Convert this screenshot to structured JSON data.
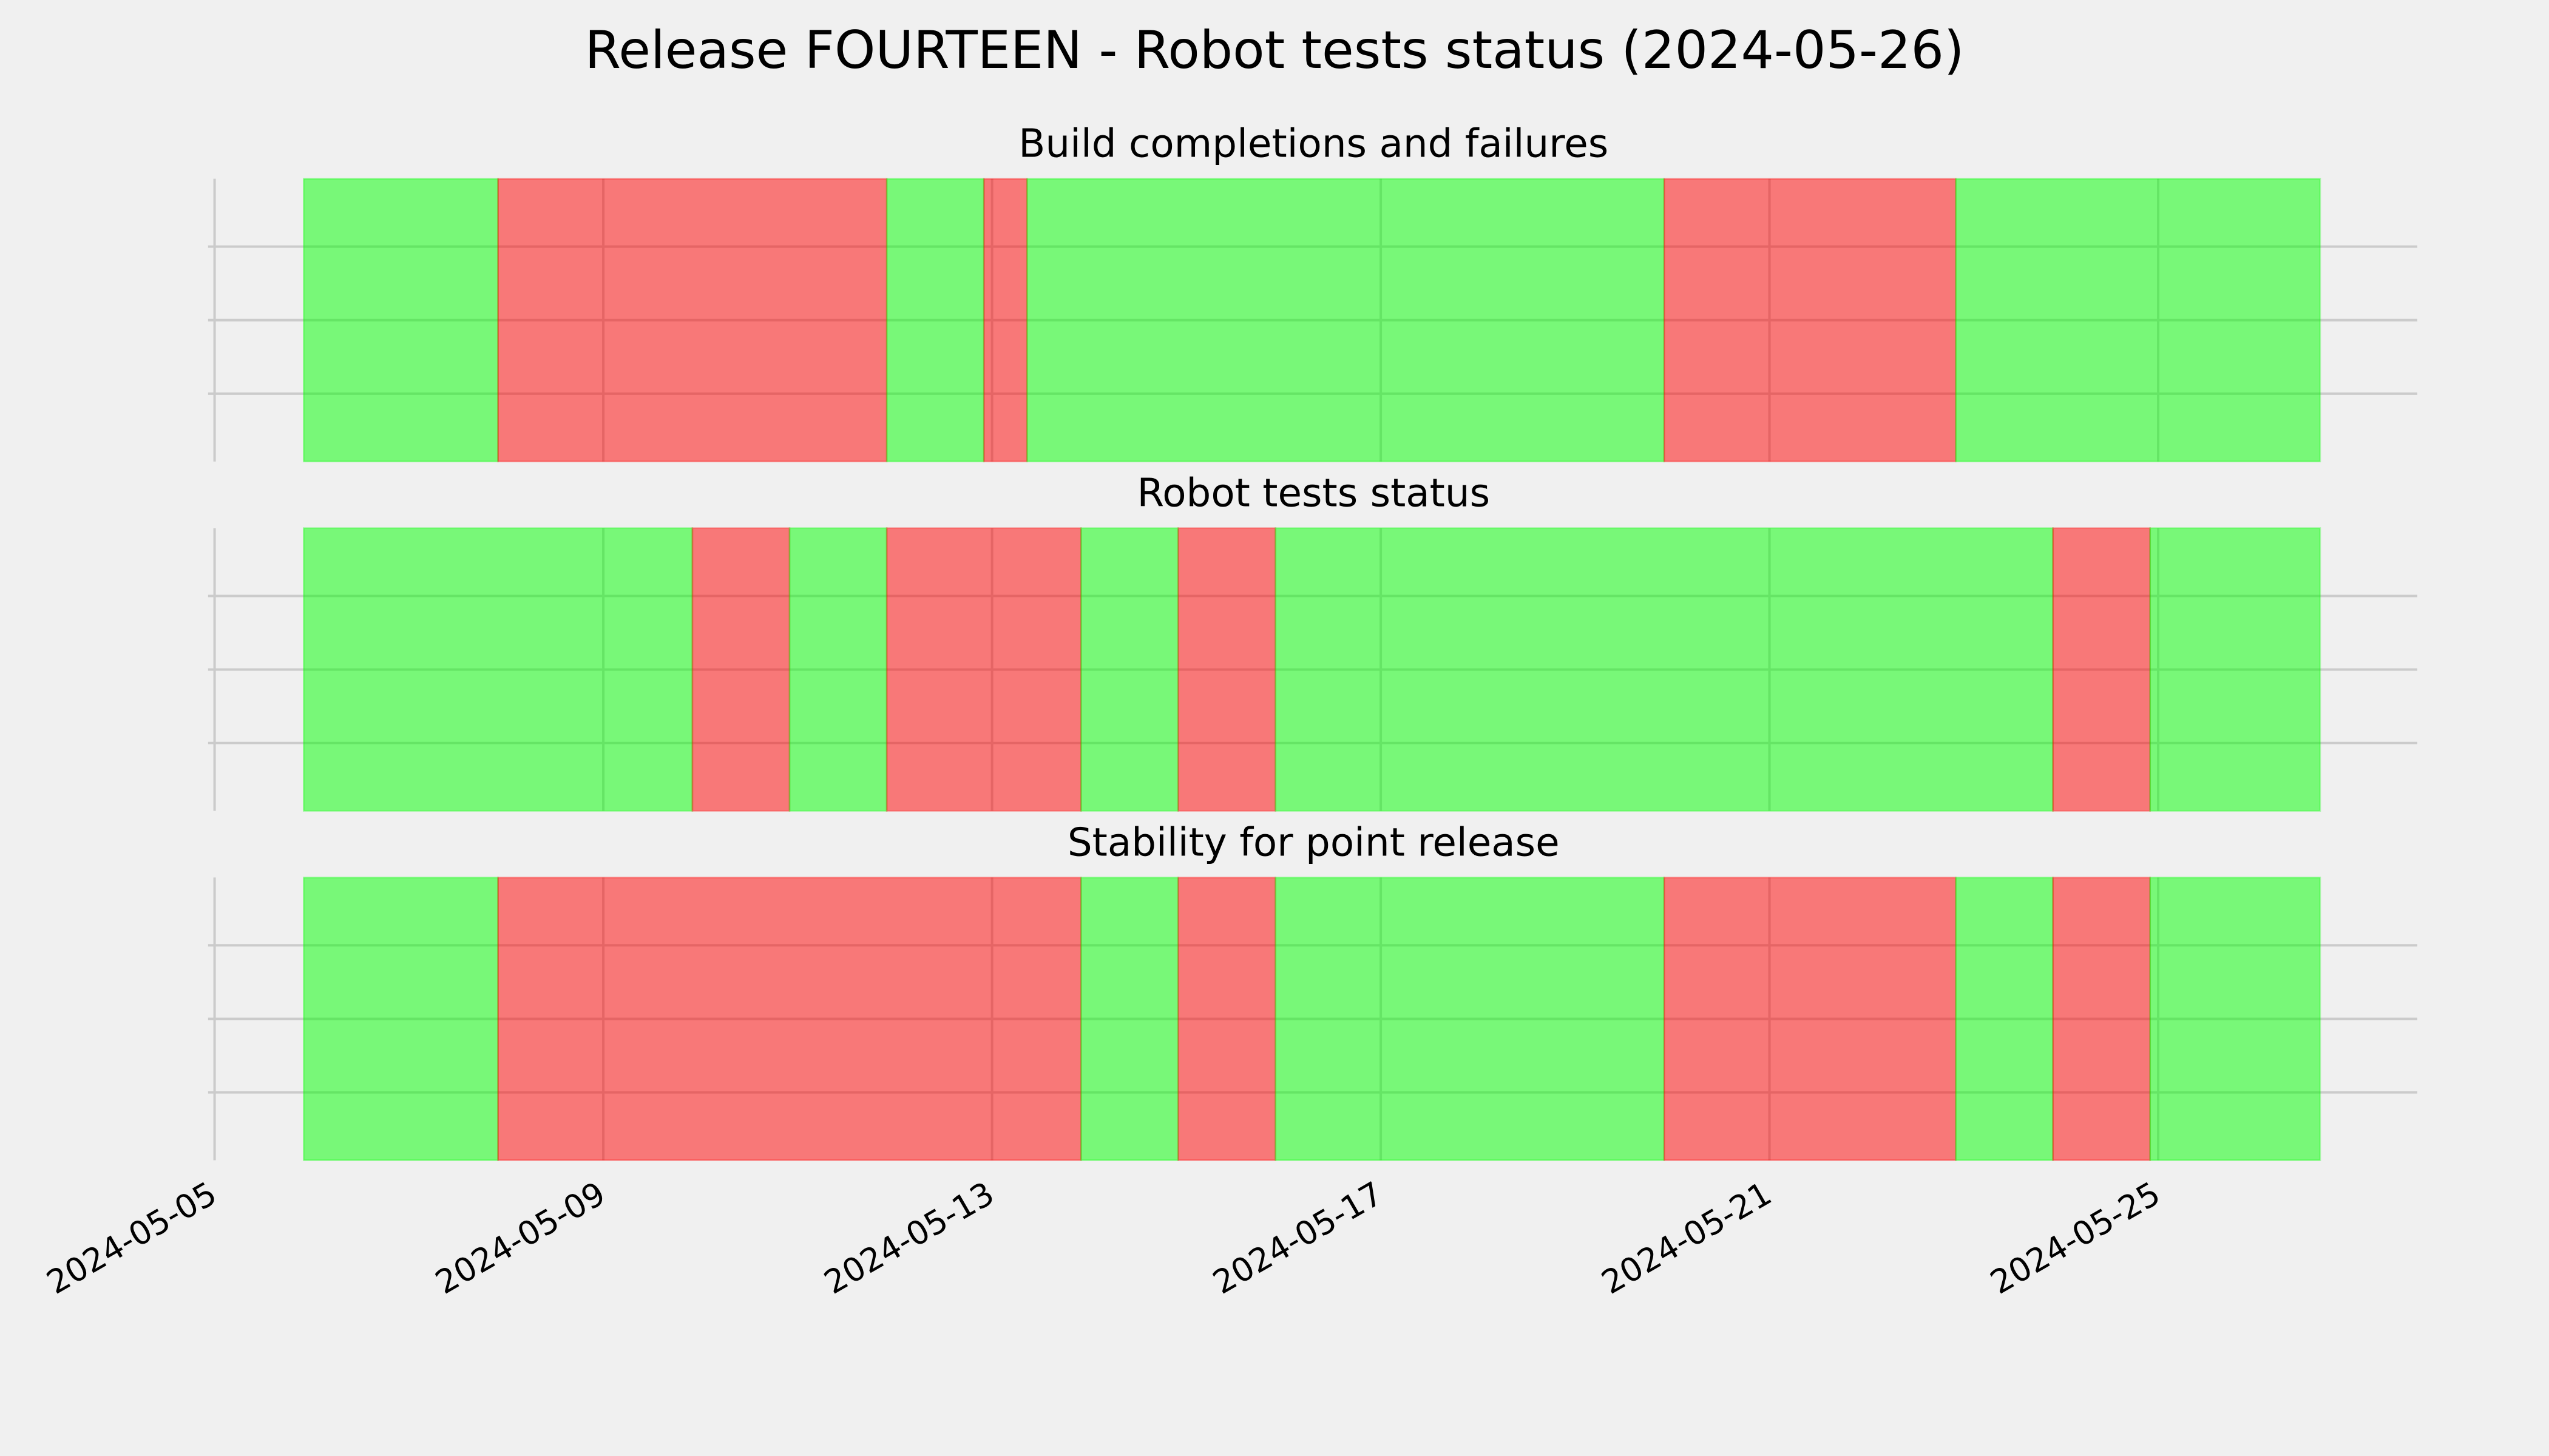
{
  "title": "Release FOURTEEN - Robot tests status (2024-05-26)",
  "chart_data": [
    {
      "type": "timeline",
      "title": "Build completions and failures",
      "alpha": 0.5,
      "grid": true,
      "spans": [
        {
          "start": "2024-05-05 22:00",
          "end": "2024-05-07 22:00",
          "color": "#00ff00"
        },
        {
          "start": "2024-05-07 22:00",
          "end": "2024-05-11 22:00",
          "color": "#ff0000"
        },
        {
          "start": "2024-05-11 22:00",
          "end": "2024-05-12 22:00",
          "color": "#00ff00"
        },
        {
          "start": "2024-05-12 22:00",
          "end": "2024-05-13 08:40",
          "color": "#ff0000"
        },
        {
          "start": "2024-05-13 08:40",
          "end": "2024-05-19 22:00",
          "color": "#00ff00"
        },
        {
          "start": "2024-05-19 22:00",
          "end": "2024-05-22 22:00",
          "color": "#ff0000"
        },
        {
          "start": "2024-05-22 22:00",
          "end": "2024-05-26 16:00",
          "color": "#00ff00"
        }
      ]
    },
    {
      "type": "timeline",
      "title": "Robot tests status",
      "alpha": 0.5,
      "grid": true,
      "spans": [
        {
          "start": "2024-05-05 22:00",
          "end": "2024-05-09 22:00",
          "color": "#00ff00"
        },
        {
          "start": "2024-05-09 22:00",
          "end": "2024-05-10 22:00",
          "color": "#ff0000"
        },
        {
          "start": "2024-05-10 22:00",
          "end": "2024-05-11 22:00",
          "color": "#00ff00"
        },
        {
          "start": "2024-05-11 22:00",
          "end": "2024-05-13 22:00",
          "color": "#ff0000"
        },
        {
          "start": "2024-05-13 22:00",
          "end": "2024-05-14 22:00",
          "color": "#00ff00"
        },
        {
          "start": "2024-05-14 22:00",
          "end": "2024-05-15 22:00",
          "color": "#ff0000"
        },
        {
          "start": "2024-05-15 22:00",
          "end": "2024-05-23 22:00",
          "color": "#00ff00"
        },
        {
          "start": "2024-05-23 22:00",
          "end": "2024-05-24 22:00",
          "color": "#ff0000"
        },
        {
          "start": "2024-05-24 22:00",
          "end": "2024-05-26 16:00",
          "color": "#00ff00"
        }
      ]
    },
    {
      "type": "timeline",
      "title": "Stability for point release",
      "alpha": 0.5,
      "grid": true,
      "xlim": [
        "2024-05-05 00:00",
        "2024-05-27 16:00"
      ],
      "xticks": [
        "2024-05-05",
        "2024-05-09",
        "2024-05-13",
        "2024-05-17",
        "2024-05-21",
        "2024-05-25"
      ],
      "spans": [
        {
          "start": "2024-05-05 22:00",
          "end": "2024-05-07 22:00",
          "color": "#00ff00"
        },
        {
          "start": "2024-05-07 22:00",
          "end": "2024-05-13 22:00",
          "color": "#ff0000"
        },
        {
          "start": "2024-05-13 22:00",
          "end": "2024-05-14 22:00",
          "color": "#00ff00"
        },
        {
          "start": "2024-05-14 22:00",
          "end": "2024-05-15 22:00",
          "color": "#ff0000"
        },
        {
          "start": "2024-05-15 22:00",
          "end": "2024-05-19 22:00",
          "color": "#00ff00"
        },
        {
          "start": "2024-05-19 22:00",
          "end": "2024-05-22 22:00",
          "color": "#ff0000"
        },
        {
          "start": "2024-05-22 22:00",
          "end": "2024-05-23 22:00",
          "color": "#00ff00"
        },
        {
          "start": "2024-05-23 22:00",
          "end": "2024-05-24 22:00",
          "color": "#ff0000"
        },
        {
          "start": "2024-05-24 22:00",
          "end": "2024-05-26 16:00",
          "color": "#00ff00"
        }
      ]
    }
  ]
}
